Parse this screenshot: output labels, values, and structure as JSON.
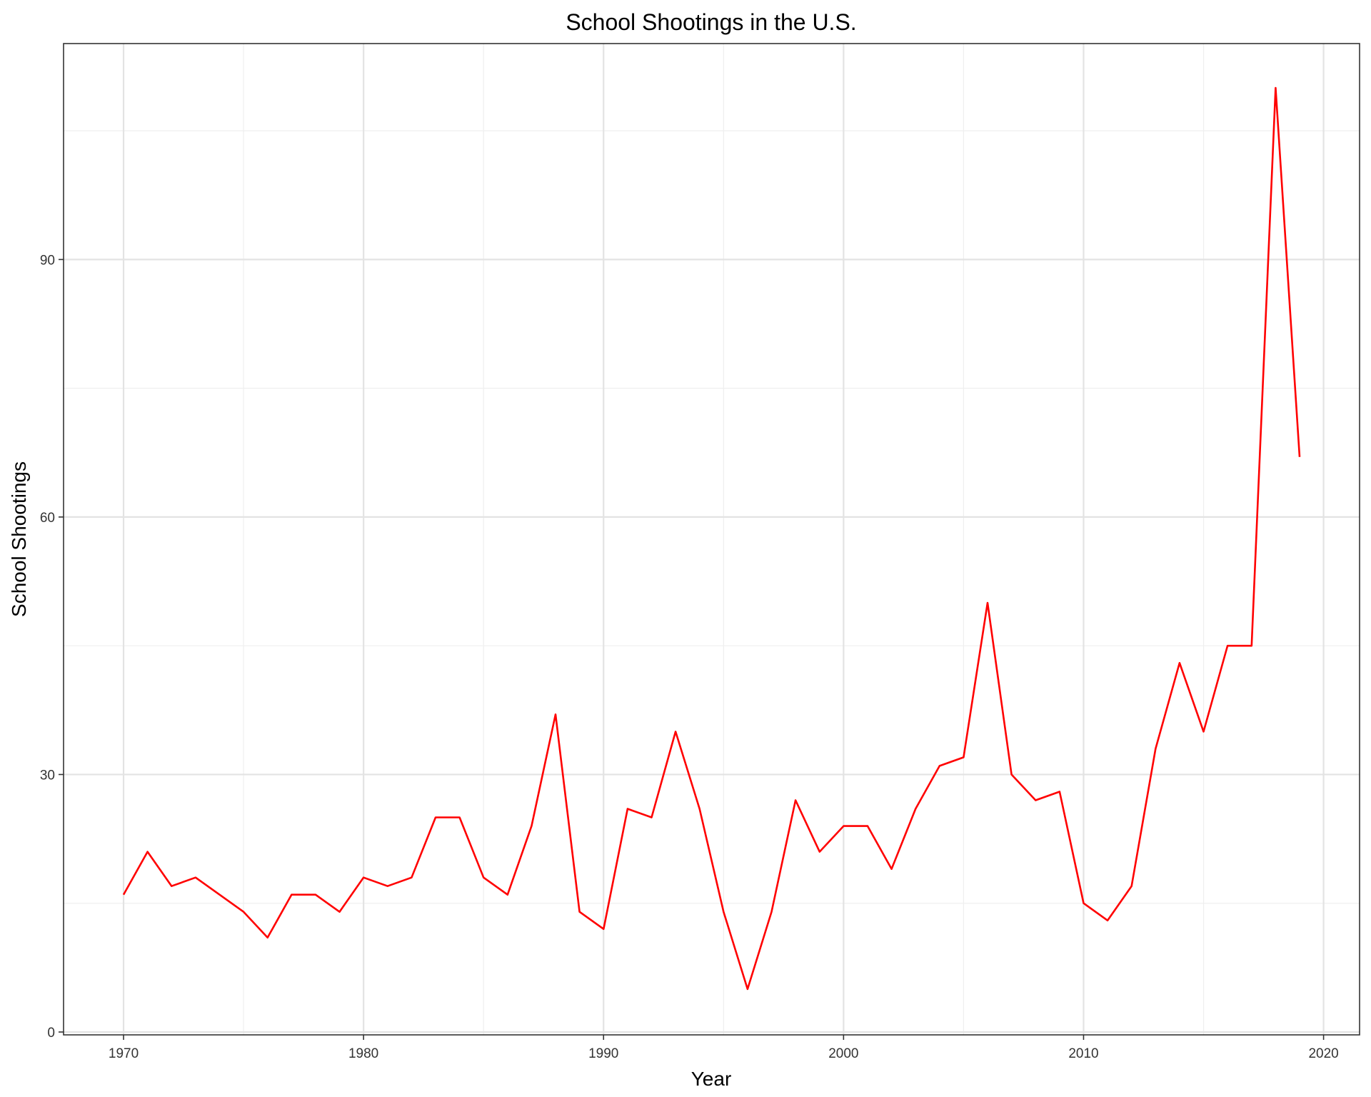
{
  "chart_data": {
    "type": "line",
    "title": "School Shootings in the U.S.",
    "xlabel": "Year",
    "ylabel": "School Shootings",
    "x_ticks": [
      1970,
      1980,
      1990,
      2000,
      2010,
      2020
    ],
    "y_ticks": [
      0,
      30,
      60,
      90
    ],
    "xlim": [
      1967.5,
      2021.5
    ],
    "ylim": [
      0,
      110
    ],
    "grid": true,
    "line_color": "#ff0000",
    "series": [
      {
        "x": [
          1970,
          1971,
          1972,
          1973,
          1974,
          1975,
          1976,
          1977,
          1978,
          1979,
          1980,
          1981,
          1982,
          1983,
          1984,
          1985,
          1986,
          1987,
          1988,
          1989,
          1990,
          1991,
          1992,
          1993,
          1994,
          1995,
          1996,
          1997,
          1998,
          1999,
          2000,
          2001,
          2002,
          2003,
          2004,
          2005,
          2006,
          2007,
          2008,
          2009,
          2010,
          2011,
          2012,
          2013,
          2014,
          2015,
          2016,
          2017,
          2018,
          2019
        ],
        "values": [
          16,
          21,
          17,
          18,
          16,
          14,
          11,
          16,
          16,
          14,
          18,
          17,
          18,
          25,
          25,
          18,
          16,
          24,
          37,
          14,
          12,
          26,
          25,
          35,
          26,
          14,
          5,
          14,
          27,
          21,
          24,
          24,
          19,
          26,
          31,
          32,
          50,
          30,
          27,
          28,
          15,
          13,
          17,
          33,
          43,
          35,
          45,
          45,
          110,
          67
        ]
      }
    ]
  }
}
